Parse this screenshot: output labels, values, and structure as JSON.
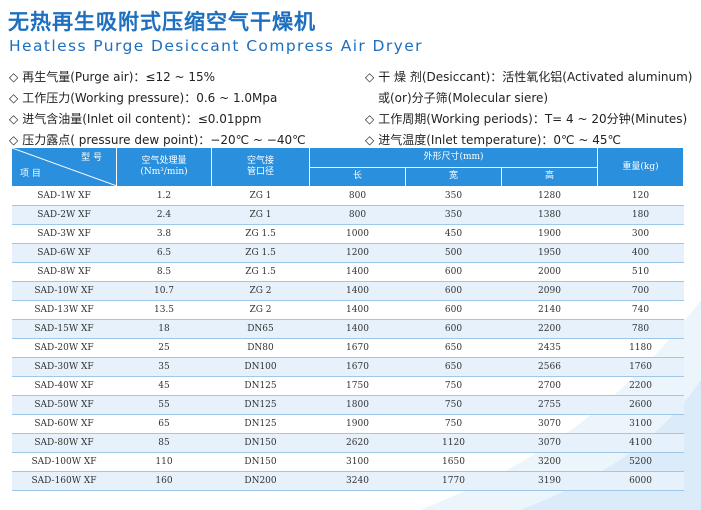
{
  "title_cn": "无热再生吸附式压缩空气干燥机",
  "title_en": "Heatless Purge Desiccant Compress Air Dryer",
  "specs_left": [
    "再生气量(Purge air)：≤12 ~ 15%",
    "工作压力(Working pressure)：0.6 ~ 1.0Mpa",
    "进气含油量(Inlet oil content)：≤0.01ppm",
    "压力露点( pressure dew point)：−20℃ ~ −40℃"
  ],
  "specs_right": {
    "desiccant": "干 燥 剂(Desiccant)：活性氧化铝(Activated aluminum)",
    "desiccant_cont": "或(or)分子筛(Molecular siere)",
    "period": "工作周期(Working periods)：T= 4 ~ 20分钟(Minutes)",
    "inlet_temp": "进气温度(Inlet temperature)：0℃ ~ 45℃"
  },
  "bullet": "◇",
  "table": {
    "diag_top": "型 号",
    "diag_bottom": "项 目",
    "col_flow": "空气处理量",
    "col_flow_unit": "(Nm³/min)",
    "col_pipe": "空气接",
    "col_pipe2": "管口径",
    "col_dims": "外形尺寸(mm)",
    "col_len": "长",
    "col_wid": "宽",
    "col_hei": "高",
    "col_weight": "重量(kg)",
    "rows": [
      [
        "SAD-1W XF",
        "1.2",
        "ZG 1",
        "800",
        "350",
        "1280",
        "120"
      ],
      [
        "SAD-2W XF",
        "2.4",
        "ZG 1",
        "800",
        "350",
        "1380",
        "180"
      ],
      [
        "SAD-3W XF",
        "3.8",
        "ZG 1.5",
        "1000",
        "450",
        "1900",
        "300"
      ],
      [
        "SAD-6W XF",
        "6.5",
        "ZG 1.5",
        "1200",
        "500",
        "1950",
        "400"
      ],
      [
        "SAD-8W XF",
        "8.5",
        "ZG 1.5",
        "1400",
        "600",
        "2000",
        "510"
      ],
      [
        "SAD-10W XF",
        "10.7",
        "ZG 2",
        "1400",
        "600",
        "2090",
        "700"
      ],
      [
        "SAD-13W XF",
        "13.5",
        "ZG 2",
        "1400",
        "600",
        "2140",
        "740"
      ],
      [
        "SAD-15W XF",
        "18",
        "DN65",
        "1400",
        "600",
        "2200",
        "780"
      ],
      [
        "SAD-20W XF",
        "25",
        "DN80",
        "1670",
        "650",
        "2435",
        "1180"
      ],
      [
        "SAD-30W XF",
        "35",
        "DN100",
        "1670",
        "650",
        "2566",
        "1760"
      ],
      [
        "SAD-40W XF",
        "45",
        "DN125",
        "1750",
        "750",
        "2700",
        "2200"
      ],
      [
        "SAD-50W XF",
        "55",
        "DN125",
        "1800",
        "750",
        "2755",
        "2600"
      ],
      [
        "SAD-60W XF",
        "65",
        "DN125",
        "1900",
        "750",
        "3070",
        "3100"
      ],
      [
        "SAD-80W XF",
        "85",
        "DN150",
        "2620",
        "1120",
        "3070",
        "4100"
      ],
      [
        "SAD-100W XF",
        "110",
        "DN150",
        "3100",
        "1650",
        "3200",
        "5200"
      ],
      [
        "SAD-160W XF",
        "160",
        "DN200",
        "3240",
        "1770",
        "3190",
        "6000"
      ]
    ]
  },
  "colors": {
    "brand_blue": "#1e6fbf",
    "header_blue": "#2a8fdc",
    "row_alt": "#e6f1fb"
  }
}
